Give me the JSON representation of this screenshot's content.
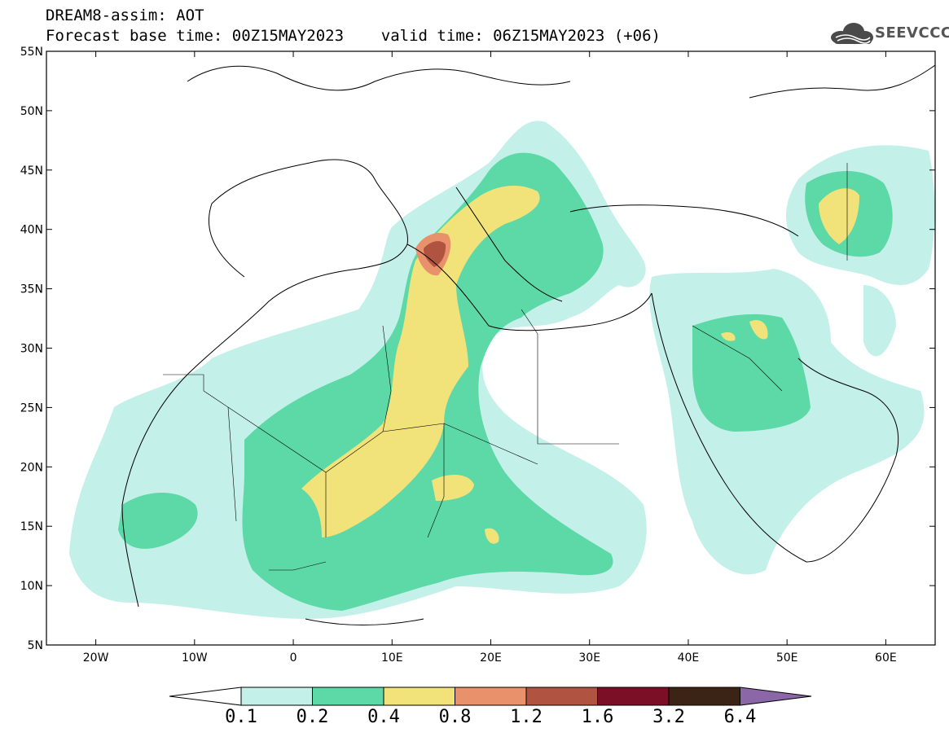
{
  "header": {
    "title_line1": "DREAM8-assim: AOT",
    "title_line2": "Forecast base time: 00Z15MAY2023    valid time: 06Z15MAY2023 (+06)"
  },
  "logo": {
    "icon": "cloud-icon",
    "text": "SEEVCCC"
  },
  "map": {
    "variable": "AOT",
    "projection": "lat-lon",
    "lon_range": [
      -25,
      65
    ],
    "lat_range": [
      5,
      55
    ],
    "x_ticks": [
      {
        "lon": -20,
        "label": "20W"
      },
      {
        "lon": -10,
        "label": "10W"
      },
      {
        "lon": 0,
        "label": "0"
      },
      {
        "lon": 10,
        "label": "10E"
      },
      {
        "lon": 20,
        "label": "20E"
      },
      {
        "lon": 30,
        "label": "30E"
      },
      {
        "lon": 40,
        "label": "40E"
      },
      {
        "lon": 50,
        "label": "50E"
      },
      {
        "lon": 60,
        "label": "60E"
      }
    ],
    "y_ticks": [
      {
        "lat": 55,
        "label": "55N"
      },
      {
        "lat": 50,
        "label": "50N"
      },
      {
        "lat": 45,
        "label": "45N"
      },
      {
        "lat": 40,
        "label": "40N"
      },
      {
        "lat": 35,
        "label": "35N"
      },
      {
        "lat": 30,
        "label": "30N"
      },
      {
        "lat": 25,
        "label": "25N"
      },
      {
        "lat": 20,
        "label": "20N"
      },
      {
        "lat": 15,
        "label": "15N"
      },
      {
        "lat": 10,
        "label": "10N"
      },
      {
        "lat": 5,
        "label": "5N"
      }
    ]
  },
  "colorbar": {
    "labels": [
      "0.1",
      "0.2",
      "0.4",
      "0.8",
      "1.2",
      "1.6",
      "3.2",
      "6.4"
    ],
    "colors": [
      "#ffffff",
      "#c4f0ea",
      "#5cd9a6",
      "#f2e27a",
      "#e8916a",
      "#b05340",
      "#7a0f25",
      "#3b2415",
      "#8b67a8"
    ]
  }
}
